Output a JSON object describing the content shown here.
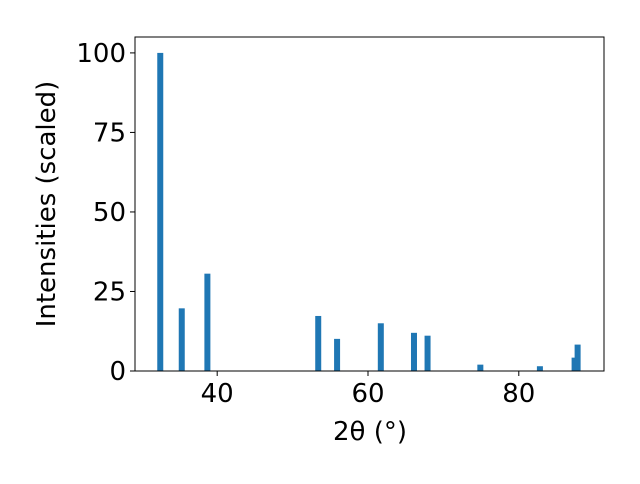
{
  "chart_data": {
    "type": "bar",
    "x_label": "2θ (°)",
    "y_label": "Intensities (scaled)",
    "x": [
      32.45,
      35.3,
      38.7,
      53.4,
      55.9,
      61.7,
      66.1,
      67.9,
      74.9,
      82.8,
      87.4,
      87.8
    ],
    "values": [
      100,
      19.7,
      30.6,
      17.3,
      10.1,
      15,
      12,
      11.1,
      2,
      1.5,
      4.2,
      8.3
    ],
    "color": "#1f77b4",
    "xlim": [
      29.1,
      91.3
    ],
    "xticks": [
      40,
      60,
      80
    ],
    "ylim": [
      0,
      105
    ],
    "yticks": [
      0,
      25,
      50,
      75,
      100
    ]
  }
}
